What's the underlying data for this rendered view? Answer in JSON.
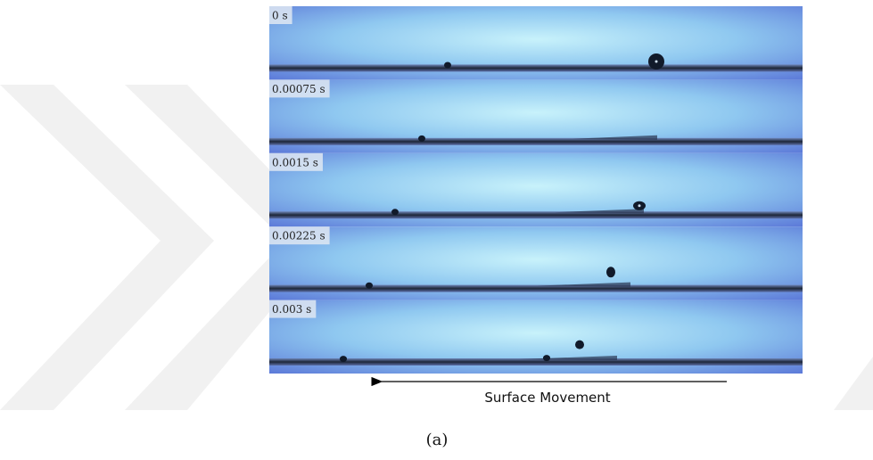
{
  "frames": [
    {
      "label": "0 s"
    },
    {
      "label": "0.00075 s"
    },
    {
      "label": "0.0015 s"
    },
    {
      "label": "0.00225 s"
    },
    {
      "label": "0.003 s"
    }
  ],
  "arrow_label": "Surface Movement",
  "caption": "(a)"
}
